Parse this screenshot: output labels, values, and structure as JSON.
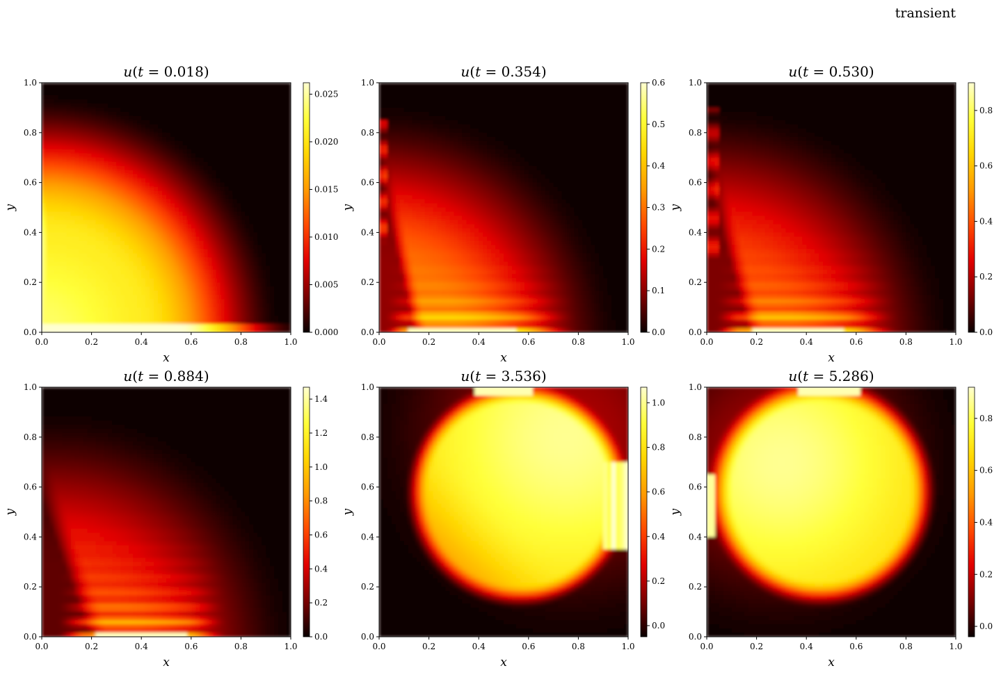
{
  "suptitle": "transient",
  "colormap": {
    "name": "hot",
    "stops": [
      "#0b0000",
      "#7a0000",
      "#e10000",
      "#ff4a00",
      "#ff9a00",
      "#ffd500",
      "#ffff3a",
      "#ffffd0"
    ]
  },
  "chart_data": [
    {
      "type": "heatmap",
      "title": "u(t = 0.018)",
      "title_fn": "u",
      "title_var": "t",
      "title_value": "0.018",
      "xlabel": "x",
      "ylabel": "y",
      "xlim": [
        0,
        1
      ],
      "ylim": [
        0,
        1
      ],
      "xticks": [
        "0.0",
        "0.2",
        "0.4",
        "0.6",
        "0.8",
        "1.0"
      ],
      "yticks": [
        "0.0",
        "0.2",
        "0.4",
        "0.6",
        "0.8",
        "1.0"
      ],
      "colorbar": {
        "min": 0,
        "max": 0.0262,
        "ticks": [
          0,
          0.005,
          0.01,
          0.015,
          0.02,
          0.025
        ],
        "labels": [
          "0.000",
          "0.005",
          "0.010",
          "0.015",
          "0.020",
          "0.025"
        ]
      },
      "pattern": "initial-quarter-circle"
    },
    {
      "type": "heatmap",
      "title": "u(t = 0.354)",
      "title_fn": "u",
      "title_var": "t",
      "title_value": "0.354",
      "xlabel": "x",
      "ylabel": "y",
      "xlim": [
        0,
        1
      ],
      "ylim": [
        0,
        1
      ],
      "xticks": [
        "0.0",
        "0.2",
        "0.4",
        "0.6",
        "0.8",
        "1.0"
      ],
      "yticks": [
        "0.0",
        "0.2",
        "0.4",
        "0.6",
        "0.8",
        "1.0"
      ],
      "colorbar": {
        "min": 0,
        "max": 0.6,
        "ticks": [
          0,
          0.1,
          0.2,
          0.3,
          0.4,
          0.5,
          0.6
        ],
        "labels": [
          "0.0",
          "0.1",
          "0.2",
          "0.3",
          "0.4",
          "0.5",
          "0.6"
        ]
      },
      "pattern": "bottom-pulse-early"
    },
    {
      "type": "heatmap",
      "title": "u(t = 0.530)",
      "title_fn": "u",
      "title_var": "t",
      "title_value": "0.530",
      "xlabel": "x",
      "ylabel": "y",
      "xlim": [
        0,
        1
      ],
      "ylim": [
        0,
        1
      ],
      "xticks": [
        "0.0",
        "0.2",
        "0.4",
        "0.6",
        "0.8",
        "1.0"
      ],
      "yticks": [
        "0.0",
        "0.2",
        "0.4",
        "0.6",
        "0.8",
        "1.0"
      ],
      "colorbar": {
        "min": 0,
        "max": 0.9,
        "ticks": [
          0,
          0.2,
          0.4,
          0.6,
          0.8
        ],
        "labels": [
          "0.0",
          "0.2",
          "0.4",
          "0.6",
          "0.8"
        ]
      },
      "pattern": "bottom-pulse-mid"
    },
    {
      "type": "heatmap",
      "title": "u(t = 0.884)",
      "title_fn": "u",
      "title_var": "t",
      "title_value": "0.884",
      "xlabel": "x",
      "ylabel": "y",
      "xlim": [
        0,
        1
      ],
      "ylim": [
        0,
        1
      ],
      "xticks": [
        "0.0",
        "0.2",
        "0.4",
        "0.6",
        "0.8",
        "1.0"
      ],
      "yticks": [
        "0.0",
        "0.2",
        "0.4",
        "0.6",
        "0.8",
        "1.0"
      ],
      "colorbar": {
        "min": 0,
        "max": 1.47,
        "ticks": [
          0,
          0.2,
          0.4,
          0.6,
          0.8,
          1.0,
          1.2,
          1.4
        ],
        "labels": [
          "0.0",
          "0.2",
          "0.4",
          "0.6",
          "0.8",
          "1.0",
          "1.2",
          "1.4"
        ]
      },
      "pattern": "bottom-pulse-late"
    },
    {
      "type": "heatmap",
      "title": "u(t = 3.536)",
      "title_fn": "u",
      "title_var": "t",
      "title_value": "3.536",
      "xlabel": "x",
      "ylabel": "y",
      "xlim": [
        0,
        1
      ],
      "ylim": [
        0,
        1
      ],
      "xticks": [
        "0.0",
        "0.2",
        "0.4",
        "0.6",
        "0.8",
        "1.0"
      ],
      "yticks": [
        "0.0",
        "0.2",
        "0.4",
        "0.6",
        "0.8",
        "1.0"
      ],
      "colorbar": {
        "min": -0.05,
        "max": 1.07,
        "ticks": [
          0,
          0.2,
          0.4,
          0.6,
          0.8,
          1.0
        ],
        "labels": [
          "0.0",
          "0.2",
          "0.4",
          "0.6",
          "0.8",
          "1.0"
        ]
      },
      "pattern": "disk-right"
    },
    {
      "type": "heatmap",
      "title": "u(t = 5.286)",
      "title_fn": "u",
      "title_var": "t",
      "title_value": "5.286",
      "xlabel": "x",
      "ylabel": "y",
      "xlim": [
        0,
        1
      ],
      "ylim": [
        0,
        1
      ],
      "xticks": [
        "0.0",
        "0.2",
        "0.4",
        "0.6",
        "0.8",
        "1.0"
      ],
      "yticks": [
        "0.0",
        "0.2",
        "0.4",
        "0.6",
        "0.8",
        "1.0"
      ],
      "colorbar": {
        "min": -0.04,
        "max": 0.92,
        "ticks": [
          0,
          0.2,
          0.4,
          0.6,
          0.8
        ],
        "labels": [
          "0.0",
          "0.2",
          "0.4",
          "0.6",
          "0.8"
        ]
      },
      "pattern": "disk-left"
    }
  ]
}
